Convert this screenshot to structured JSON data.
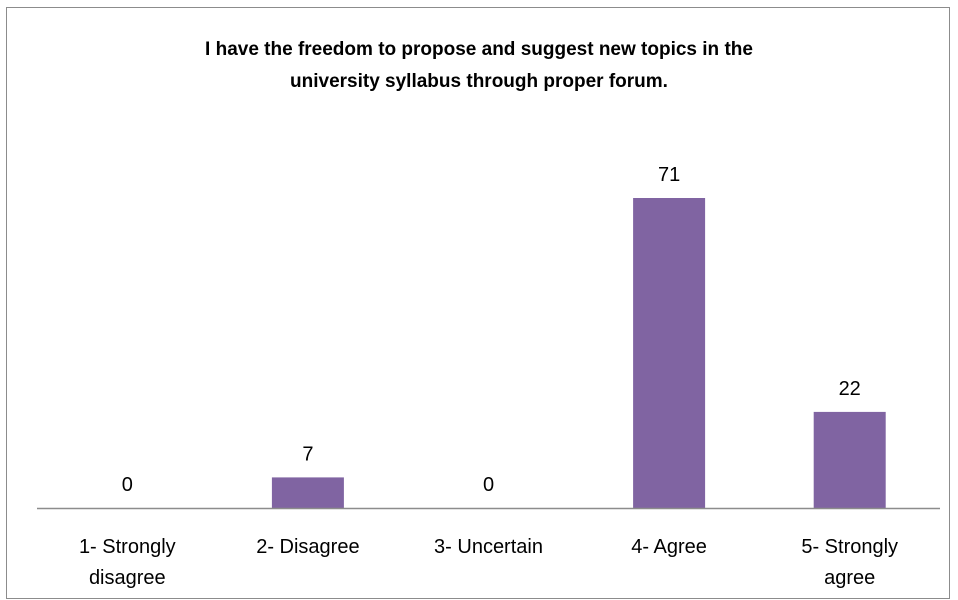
{
  "chart_data": {
    "type": "bar",
    "title_lines": [
      "I have the freedom to propose and suggest new topics in the",
      "university syllabus through proper forum."
    ],
    "categories": [
      [
        "1- Strongly",
        "disagree"
      ],
      [
        "2- Disagree"
      ],
      [
        "3- Uncertain"
      ],
      [
        "4- Agree"
      ],
      [
        "5- Strongly",
        "agree"
      ]
    ],
    "values": [
      0,
      7,
      0,
      71,
      22
    ],
    "data_labels": true,
    "ylim": [
      0,
      80
    ],
    "grid": false,
    "legend": "none",
    "bar_color": "#8064a2",
    "axis_color": "#8c8c8c"
  }
}
